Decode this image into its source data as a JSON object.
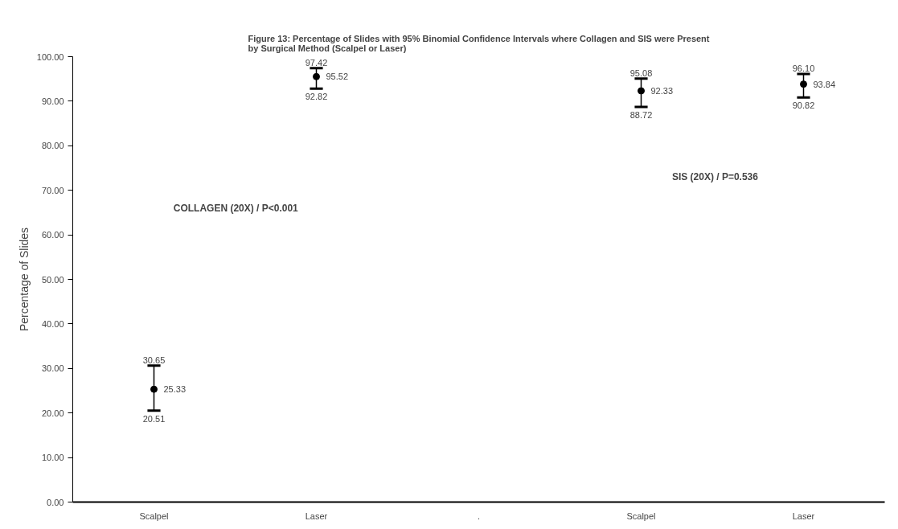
{
  "chart_data": {
    "type": "scatter",
    "title": "Figure 13: Percentage of Slides with 95% Binomial Confidence Intervals where Collagen and SIS were Present\nby Surgical Method (Scalpel or Laser)",
    "ylabel": "Percentage of Slides",
    "categories": [
      "Scalpel",
      "Laser",
      ".",
      "Scalpel",
      "Laser"
    ],
    "series": [
      {
        "color": "#000000",
        "values": [
          25.33,
          95.52,
          null,
          92.33,
          93.84
        ],
        "errors": [
          [
            20.51,
            30.65
          ],
          [
            92.82,
            97.42
          ],
          null,
          [
            88.72,
            95.08
          ],
          [
            90.82,
            96.1
          ]
        ]
      }
    ],
    "data_labels": true,
    "marker": "circle",
    "ylim": [
      0,
      100
    ],
    "yticks": [
      {
        "value": 0,
        "label": "0.00"
      },
      {
        "value": 10,
        "label": "10.00"
      },
      {
        "value": 20,
        "label": "20.00"
      },
      {
        "value": 30,
        "label": "30.00"
      },
      {
        "value": 40,
        "label": "40.00"
      },
      {
        "value": 50,
        "label": "50.00"
      },
      {
        "value": 60,
        "label": "60.00"
      },
      {
        "value": 70,
        "label": "70.00"
      },
      {
        "value": 80,
        "label": "80.00"
      },
      {
        "value": 90,
        "label": "90.00"
      },
      {
        "value": 100,
        "label": "100.00"
      }
    ],
    "annotations": [
      "COLLAGEN (20X) / P<0.001",
      "SIS (20X) / P=0.536",
      {
        "text": "30.65",
        "y": 30.65
      },
      {
        "text": "20.51",
        "y": 20.51
      },
      {
        "text": "97.42",
        "y": 97.42
      },
      {
        "text": "92.82",
        "y": 92.82
      },
      {
        "text": "95.08",
        "y": 95.08
      },
      {
        "text": "88.72",
        "y": 88.72
      },
      {
        "text": "96.10",
        "y": 96.1
      },
      {
        "text": "90.82",
        "y": 90.82
      }
    ]
  }
}
